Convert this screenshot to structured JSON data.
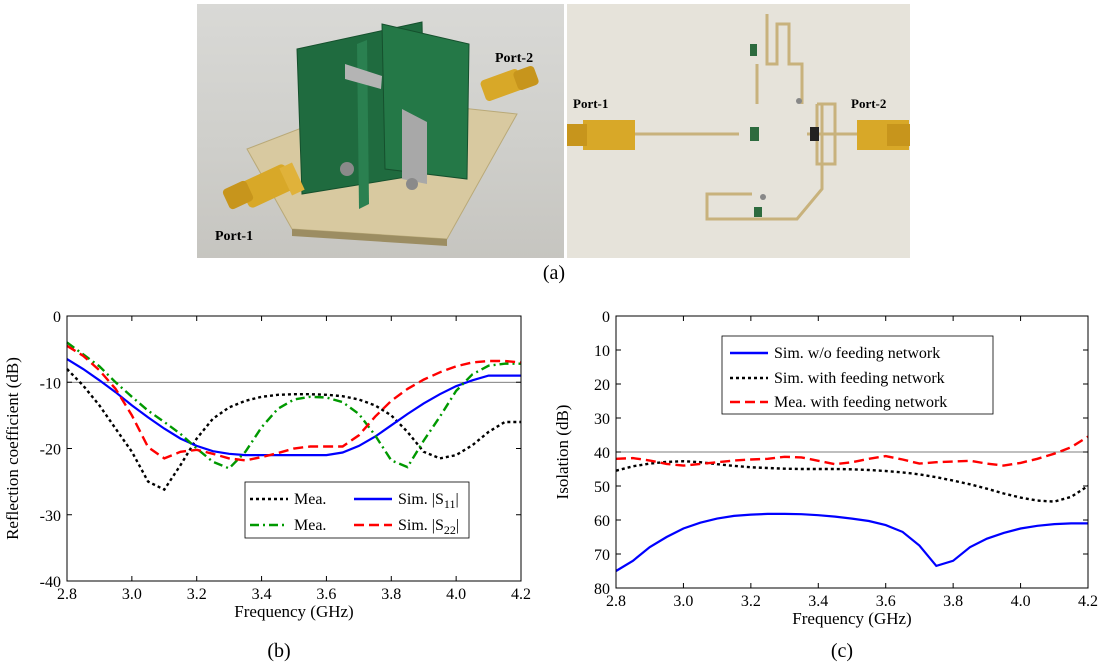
{
  "photos": {
    "left_port1": "Port-1",
    "left_port2": "Port-2",
    "right_port1": "Port-1",
    "right_port2": "Port-2"
  },
  "captions": {
    "a": "(a)",
    "b": "(b)",
    "c": "(c)"
  },
  "colors": {
    "blue": "#0000ff",
    "black": "#000000",
    "red": "#ff0000",
    "green": "#009900"
  },
  "chart_data": [
    {
      "type": "line",
      "title": "",
      "xlabel": "Frequency (GHz)",
      "ylabel": "Reflection coefficient (dB)",
      "xlim": [
        2.8,
        4.2
      ],
      "ylim": [
        -40,
        0
      ],
      "xticks": [
        "2.8",
        "3.0",
        "3.2",
        "3.4",
        "3.6",
        "3.8",
        "4.0",
        "4.2"
      ],
      "yticks": [
        "0",
        "-10",
        "-20",
        "-30",
        "-40"
      ],
      "reference_line": -10,
      "legend_position": "bottom-right",
      "x": [
        2.8,
        2.85,
        2.9,
        2.95,
        3.0,
        3.05,
        3.1,
        3.15,
        3.2,
        3.25,
        3.3,
        3.35,
        3.4,
        3.45,
        3.5,
        3.55,
        3.6,
        3.65,
        3.7,
        3.75,
        3.8,
        3.85,
        3.9,
        3.95,
        4.0,
        4.05,
        4.1,
        4.15,
        4.2
      ],
      "series": [
        {
          "name": "Mea.",
          "style": "dotted",
          "color": "#000000",
          "values": [
            -8.0,
            -10.5,
            -13.5,
            -17.0,
            -20.5,
            -25.0,
            -26.2,
            -22.5,
            -18.5,
            -15.5,
            -13.8,
            -12.8,
            -12.2,
            -11.9,
            -11.8,
            -11.8,
            -11.9,
            -12.1,
            -12.6,
            -13.5,
            -15.0,
            -17.5,
            -20.5,
            -21.5,
            -21.0,
            -19.5,
            -17.5,
            -16.0,
            -16.0
          ]
        },
        {
          "name": "Sim. |S11|",
          "style": "solid",
          "color": "#0000ff",
          "values": [
            -6.5,
            -8.0,
            -9.7,
            -11.5,
            -13.5,
            -15.3,
            -17.0,
            -18.5,
            -19.6,
            -20.4,
            -20.8,
            -21.0,
            -21.0,
            -21.0,
            -21.0,
            -21.0,
            -21.0,
            -20.6,
            -19.6,
            -18.2,
            -16.5,
            -14.8,
            -13.2,
            -11.8,
            -10.6,
            -9.7,
            -9.0,
            -9.0,
            -9.0
          ]
        },
        {
          "name": "Mea.",
          "style": "dashdot",
          "color": "#009900",
          "values": [
            -4.0,
            -5.8,
            -7.6,
            -10.0,
            -12.2,
            -14.3,
            -16.0,
            -17.8,
            -20.0,
            -22.0,
            -23.0,
            -20.5,
            -16.8,
            -14.0,
            -12.6,
            -12.2,
            -12.3,
            -13.0,
            -14.8,
            -18.0,
            -21.8,
            -22.8,
            -18.8,
            -15.2,
            -11.3,
            -8.8,
            -7.5,
            -7.2,
            -7.2
          ]
        },
        {
          "name": "Sim. |S22|",
          "style": "dashed",
          "color": "#ff0000",
          "values": [
            -4.5,
            -6.0,
            -8.2,
            -11.0,
            -15.0,
            -19.8,
            -21.5,
            -20.5,
            -20.2,
            -20.8,
            -21.5,
            -21.8,
            -21.3,
            -20.7,
            -20.0,
            -19.7,
            -19.7,
            -19.7,
            -18.0,
            -15.2,
            -12.8,
            -11.0,
            -9.6,
            -8.5,
            -7.6,
            -7.0,
            -6.8,
            -6.8,
            -7.0
          ]
        }
      ],
      "legend": [
        {
          "label": "Mea.",
          "series": 0
        },
        {
          "label": "Sim. |S11|",
          "series": 1
        },
        {
          "label": "Mea.",
          "series": 2
        },
        {
          "label": "Sim. |S22|",
          "series": 3
        }
      ]
    },
    {
      "type": "line",
      "title": "",
      "xlabel": "Frequency (GHz)",
      "ylabel": "Isolation (dB)",
      "xlim": [
        2.8,
        4.2
      ],
      "ylim": [
        0,
        80
      ],
      "y_inverted": true,
      "xticks": [
        "2.8",
        "3.0",
        "3.2",
        "3.4",
        "3.6",
        "3.8",
        "4.0",
        "4.2"
      ],
      "yticks": [
        "0",
        "10",
        "20",
        "30",
        "40",
        "50",
        "60",
        "70",
        "80"
      ],
      "reference_line": 40,
      "legend_position": "top",
      "x": [
        2.8,
        2.85,
        2.9,
        2.95,
        3.0,
        3.05,
        3.1,
        3.15,
        3.2,
        3.25,
        3.3,
        3.35,
        3.4,
        3.45,
        3.5,
        3.55,
        3.6,
        3.65,
        3.7,
        3.75,
        3.8,
        3.85,
        3.9,
        3.95,
        4.0,
        4.05,
        4.1,
        4.15,
        4.2
      ],
      "series": [
        {
          "name": "Sim. w/o feeding network",
          "style": "solid",
          "color": "#0000ff",
          "values": [
            75.0,
            72.0,
            68.0,
            65.0,
            62.5,
            60.8,
            59.6,
            58.8,
            58.4,
            58.2,
            58.2,
            58.3,
            58.6,
            59.0,
            59.6,
            60.3,
            61.5,
            63.5,
            67.5,
            73.5,
            72.0,
            68.0,
            65.5,
            63.8,
            62.5,
            61.7,
            61.2,
            61.0,
            61.0
          ]
        },
        {
          "name": "Sim. with feeding network",
          "style": "dotted",
          "color": "#000000",
          "values": [
            45.5,
            44.2,
            43.4,
            42.9,
            42.7,
            43.0,
            43.6,
            44.1,
            44.5,
            44.7,
            44.9,
            45.0,
            45.0,
            45.0,
            45.1,
            45.3,
            45.6,
            46.0,
            46.6,
            47.4,
            48.4,
            49.5,
            50.8,
            52.2,
            53.4,
            54.3,
            54.6,
            53.2,
            50.0
          ]
        },
        {
          "name": "Mea. with feeding network",
          "style": "dashed",
          "color": "#ff0000",
          "values": [
            42.0,
            41.8,
            42.5,
            43.5,
            44.0,
            43.5,
            43.0,
            42.5,
            42.2,
            42.0,
            41.4,
            41.6,
            42.6,
            43.6,
            43.0,
            42.0,
            41.2,
            42.2,
            43.4,
            43.0,
            42.8,
            42.6,
            43.4,
            44.0,
            43.2,
            42.0,
            40.5,
            38.6,
            35.5
          ]
        }
      ],
      "legend": [
        {
          "label": "Sim. w/o feeding network",
          "series": 0
        },
        {
          "label": "Sim. with feeding network",
          "series": 1
        },
        {
          "label": "Mea. with feeding network",
          "series": 2
        }
      ]
    }
  ]
}
